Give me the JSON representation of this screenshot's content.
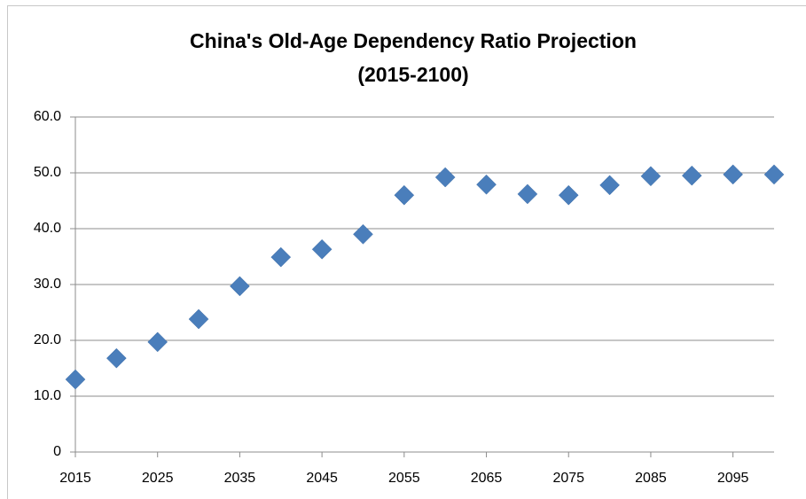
{
  "chart_data": {
    "type": "scatter",
    "title": [
      "China's Old-Age Dependency Ratio Projection",
      "(2015-2100)"
    ],
    "x": [
      2015,
      2020,
      2025,
      2030,
      2035,
      2040,
      2045,
      2050,
      2055,
      2060,
      2065,
      2070,
      2075,
      2080,
      2085,
      2090,
      2095,
      2100
    ],
    "series": [
      {
        "color": "#4a7ebb",
        "values": [
          13.0,
          16.8,
          19.7,
          23.8,
          29.7,
          34.9,
          36.3,
          39.0,
          46.0,
          49.2,
          47.9,
          46.2,
          46.0,
          47.8,
          49.4,
          49.5,
          49.7,
          49.7
        ]
      }
    ],
    "xlim": [
      2015,
      2100
    ],
    "xticks": [
      2015,
      2025,
      2035,
      2045,
      2055,
      2065,
      2075,
      2085,
      2095
    ],
    "ylim": [
      0,
      60
    ],
    "yticks": [
      0,
      {
        "value": 10,
        "label": "10.0"
      },
      {
        "value": 20,
        "label": "20.0"
      },
      {
        "value": 30,
        "label": "30.0"
      },
      {
        "value": 40,
        "label": "40.0"
      },
      {
        "value": 50,
        "label": "50.0"
      },
      {
        "value": 60,
        "label": "60.0"
      }
    ],
    "grid": true
  }
}
